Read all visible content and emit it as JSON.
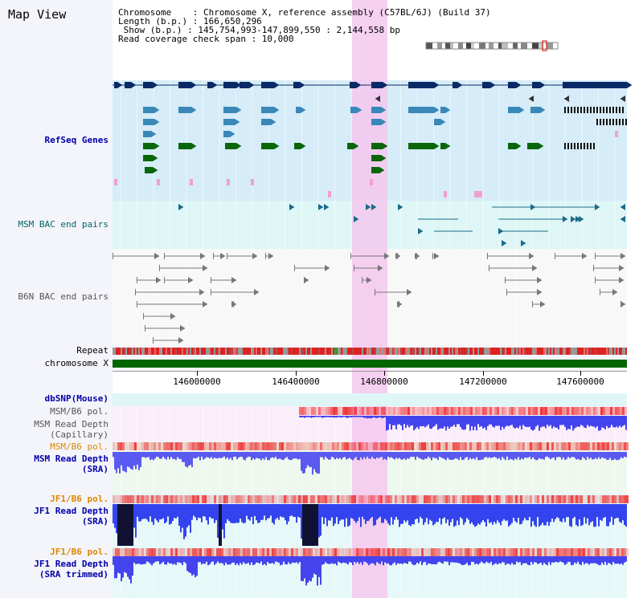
{
  "title": "Map View",
  "header": {
    "line1": "Chromosome    : Chromosome X, reference assembly (C57BL/6J) (Build 37)",
    "line2": "Length (b.p.) : 166,650,296",
    "line3": " Show (b.p.) : 145,754,993-147,899,550 : 2,144,558 bp",
    "line4": "Read coverage check span : 10,000"
  },
  "tracks": {
    "refseq": "RefSeq Genes",
    "msm_bac": "MSM BAC end pairs",
    "b6n_bac": "B6N BAC end pairs",
    "repeat": "Repeat",
    "chromosome": "chromosome X",
    "dbsnp": "dbSNP(Mouse)",
    "msm_b6_pol_1": "MSM/B6 pol.",
    "msm_rd_cap_1": "MSM Read Depth",
    "msm_rd_cap_2": "(Capillary)",
    "msm_b6_pol_2": "MSM/B6 pol.",
    "msm_rd_sra_1": "MSM Read Depth",
    "msm_rd_sra_2": "(SRA)",
    "jf1_b6_pol_1": "JF1/B6 pol.",
    "jf1_rd_sra_1": "JF1 Read Depth",
    "jf1_rd_sra_2": "(SRA)",
    "jf1_b6_pol_2": "JF1/B6 pol.",
    "jf1_rd_trim_1": "JF1 Read Depth",
    "jf1_rd_trim_2": "(SRA trimmed)"
  },
  "ruler": {
    "ticks": [
      "146000000",
      "146400000",
      "146800000",
      "147200000",
      "147600000"
    ]
  },
  "colors": {
    "navy_label": "#0000aa",
    "teal_label": "#006666",
    "grey_label": "#555555",
    "orange_label": "#dd8800",
    "highlight": "#f5c8ee",
    "refseq_bg": "#d6ecf8",
    "msm_bac_bg": "#dff6f6",
    "read_depth_blue": "#5555ee",
    "pol_red": "#ee3333",
    "chromosome_green": "#006600"
  }
}
